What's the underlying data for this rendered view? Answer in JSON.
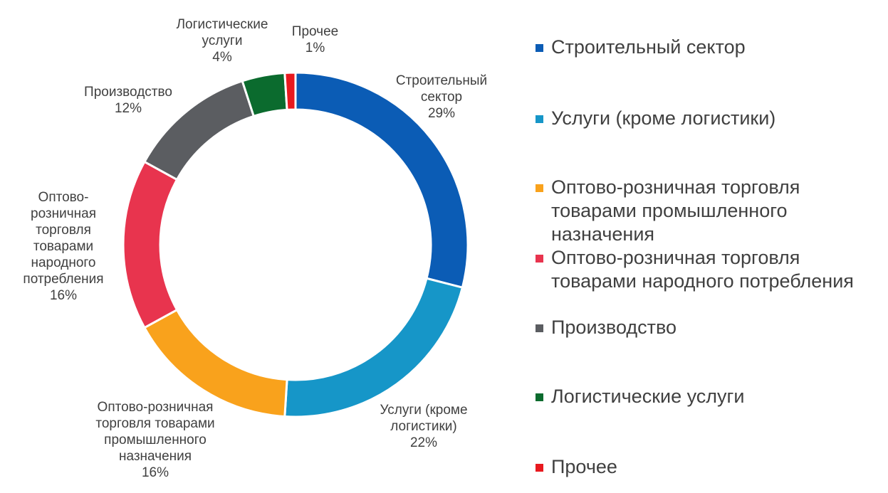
{
  "chart_data": {
    "type": "pie",
    "variant": "donut",
    "title": "",
    "legend_position": "right",
    "slices": [
      {
        "name": "Строительный сектор",
        "value": 29,
        "value_label": "29%",
        "color": "#0B5CB5",
        "label_lines": "Строительный\nсектор",
        "legend_lines": "Строительный сектор"
      },
      {
        "name": "Услуги (кроме логистики)",
        "value": 22,
        "value_label": "22%",
        "color": "#1696C8",
        "label_lines": "Услуги (кроме\nлогистики)",
        "legend_lines": "Услуги (кроме логистики)"
      },
      {
        "name": "Оптово-розничная торговля товарами промышленного назначения",
        "value": 16,
        "value_label": "16%",
        "color": "#F9A21C",
        "label_lines": "Оптово-розничная\nторговля товарами\nпромышленного\nназначения",
        "legend_lines": "Оптово-розничная торговля\nтоварами промышленного\nназначения"
      },
      {
        "name": "Оптово-розничная торговля товарами народного потребления",
        "value": 16,
        "value_label": "16%",
        "color": "#E8344E",
        "label_lines": "Оптово-\nрозничная\nторговля\nтоварами\nнародного\nпотребления",
        "legend_lines": "Оптово-розничная торговля\nтоварами народного потребления"
      },
      {
        "name": "Производство",
        "value": 12,
        "value_label": "12%",
        "color": "#5B5D61",
        "label_lines": "Производство",
        "legend_lines": "Производство"
      },
      {
        "name": "Логистические услуги",
        "value": 4,
        "value_label": "4%",
        "color": "#0B6B2E",
        "label_lines": "Логистические\nуслуги",
        "legend_lines": "Логистические услуги"
      },
      {
        "name": "Прочее",
        "value": 1,
        "value_label": "1%",
        "color": "#E8191F",
        "label_lines": "Прочее",
        "legend_lines": "Прочее"
      }
    ]
  }
}
